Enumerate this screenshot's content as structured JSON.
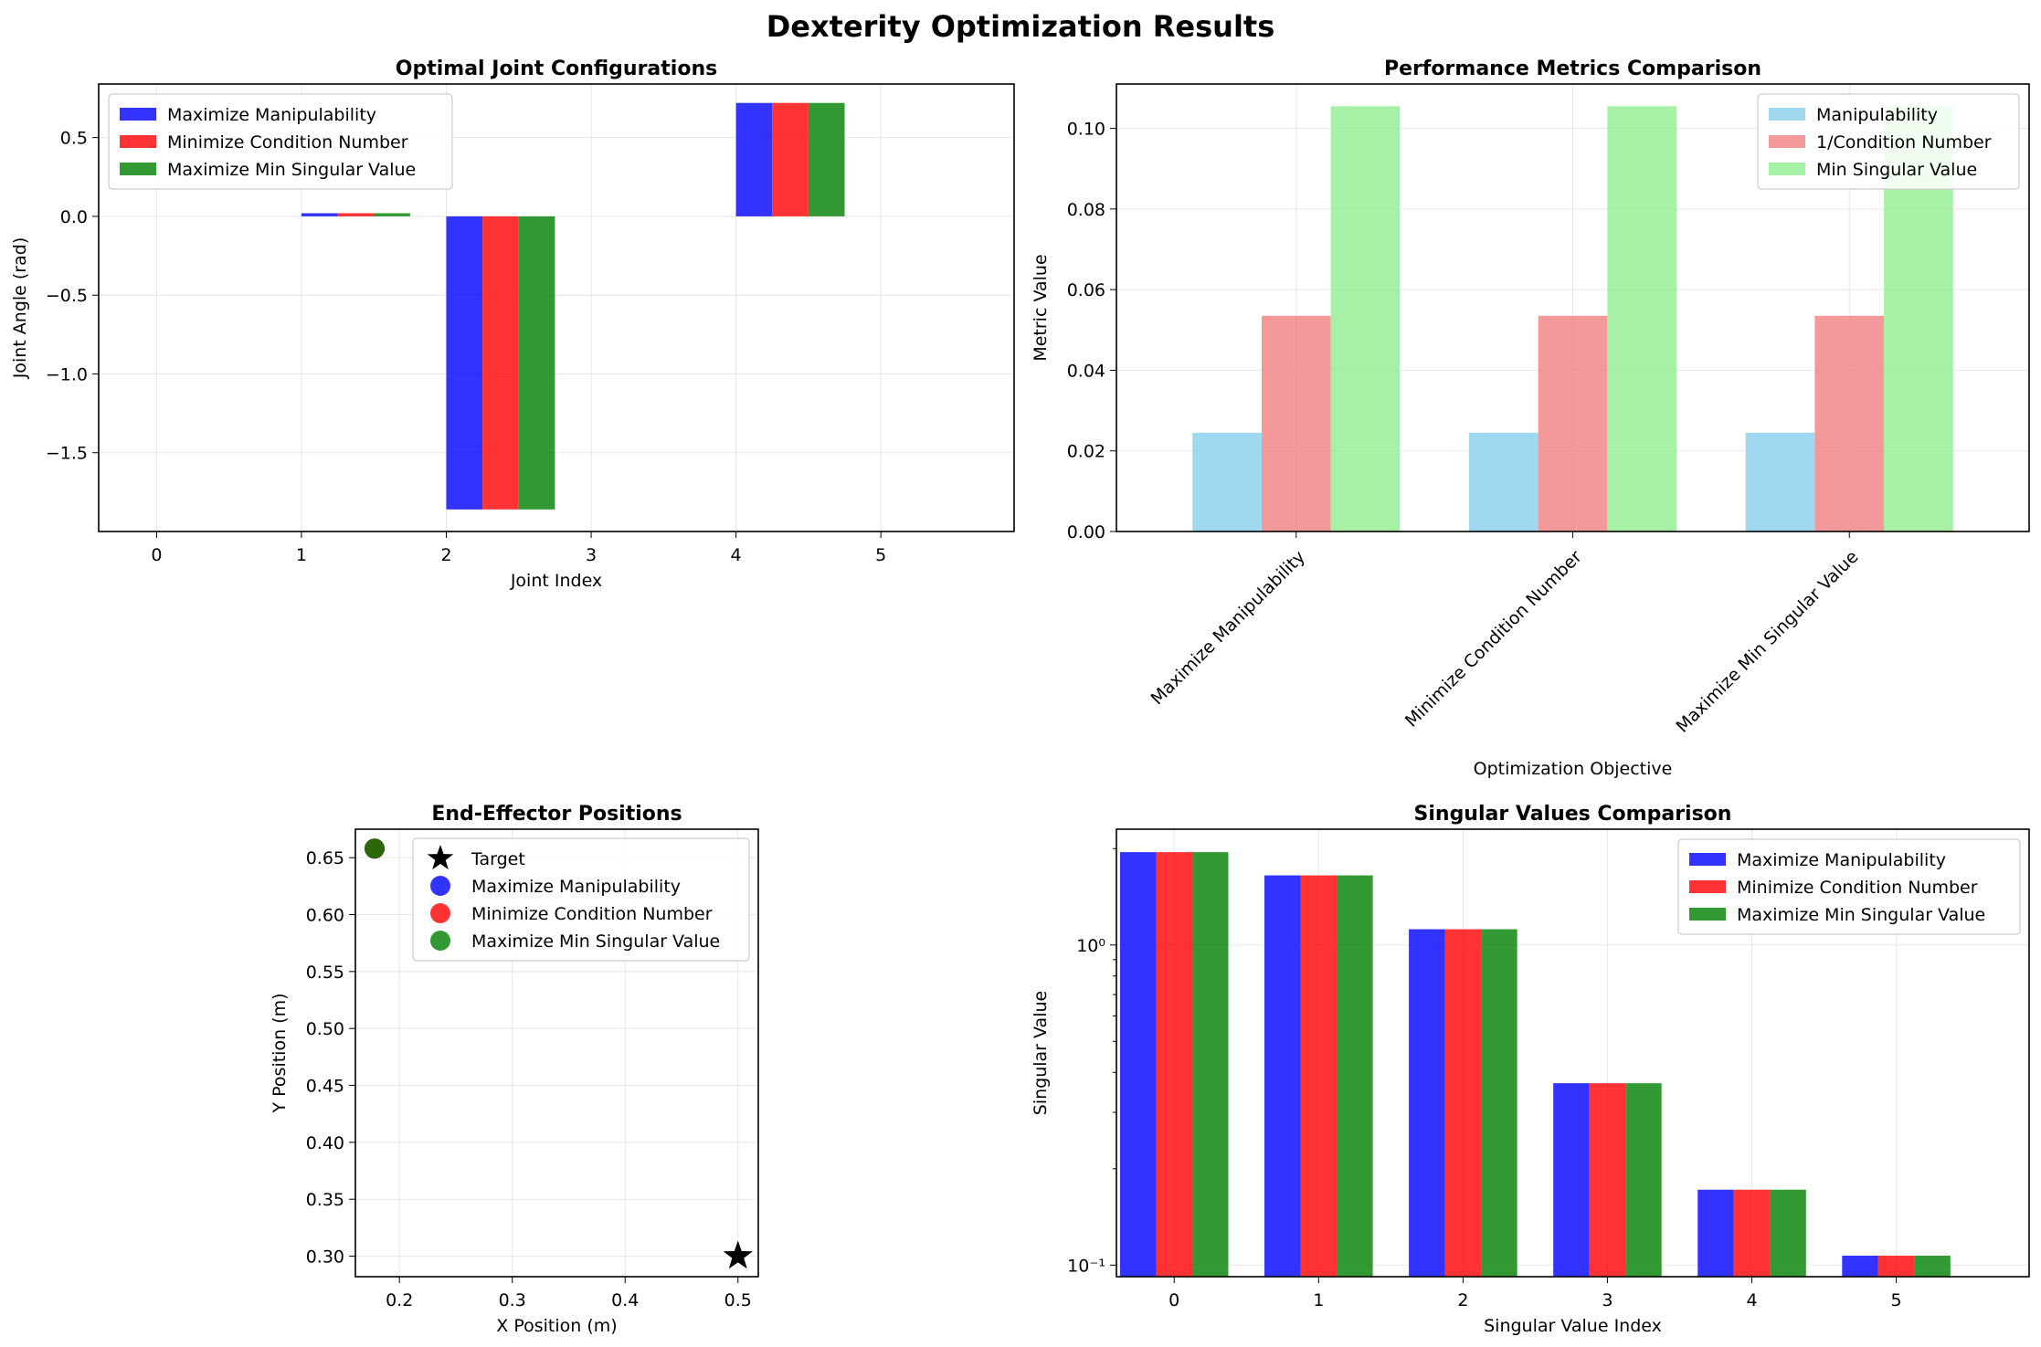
{
  "figure": {
    "suptitle": "Dexterity Optimization Results"
  },
  "colors": {
    "blue": "#0000ff",
    "red": "#ff0000",
    "green": "#008000",
    "skyblue": "#87ceeb",
    "lightcoral": "#f08080",
    "lightgreen": "#90ee90",
    "grid": "#b0b0b0"
  },
  "chart_data": [
    {
      "id": "joints",
      "type": "bar",
      "title": "Optimal Joint Configurations",
      "xlabel": "Joint Index",
      "ylabel": "Joint Angle (rad)",
      "x": [
        0,
        1,
        2,
        3,
        4,
        5
      ],
      "xticks": [
        "0",
        "1",
        "2",
        "3",
        "4",
        "5"
      ],
      "xlim": [
        -0.4,
        5.92
      ],
      "ylim": [
        -2.0,
        0.84
      ],
      "yticks": [
        0.5,
        0.0,
        -0.5,
        -1.0,
        -1.5
      ],
      "ytick_labels": [
        "0.5",
        "0.0",
        "−0.5",
        "−1.0",
        "−1.5"
      ],
      "bar_width": 0.25,
      "grid": true,
      "legend": "upper left",
      "series": [
        {
          "name": "Maximize Manipulability",
          "color": "blue",
          "values": [
            0,
            0.02,
            -1.86,
            0,
            0.72,
            0
          ]
        },
        {
          "name": "Minimize Condition Number",
          "color": "red",
          "values": [
            0,
            0.02,
            -1.86,
            0,
            0.72,
            0
          ]
        },
        {
          "name": "Maximize Min Singular Value",
          "color": "green",
          "values": [
            0,
            0.02,
            -1.86,
            0,
            0.72,
            0
          ]
        }
      ]
    },
    {
      "id": "metrics",
      "type": "bar",
      "title": "Performance Metrics Comparison",
      "xlabel": "Optimization Objective",
      "ylabel": "Metric Value",
      "categories": [
        "Maximize Manipulability",
        "Minimize Condition Number",
        "Maximize Min Singular Value"
      ],
      "xlim": [
        -0.65,
        2.65
      ],
      "ylim": [
        0,
        0.111
      ],
      "yticks": [
        0.0,
        0.02,
        0.04,
        0.06,
        0.08,
        0.1
      ],
      "ytick_labels": [
        "0.00",
        "0.02",
        "0.04",
        "0.06",
        "0.08",
        "0.10"
      ],
      "bar_width": 0.25,
      "grid": true,
      "legend": "upper right",
      "series": [
        {
          "name": "Manipulability",
          "color": "skyblue",
          "values": [
            0.0245,
            0.0245,
            0.0245
          ]
        },
        {
          "name": "1/Condition Number",
          "color": "lightcoral",
          "values": [
            0.0535,
            0.0535,
            0.0535
          ]
        },
        {
          "name": "Min Singular Value",
          "color": "lightgreen",
          "values": [
            0.1055,
            0.1055,
            0.1055
          ]
        }
      ]
    },
    {
      "id": "positions",
      "type": "scatter",
      "title": "End-Effector Positions",
      "xlabel": "X Position (m)",
      "ylabel": "Y Position (m)",
      "xlim": [
        0.161,
        0.518
      ],
      "ylim": [
        0.282,
        0.675
      ],
      "xticks": [
        0.2,
        0.3,
        0.4,
        0.5
      ],
      "xtick_labels": [
        "0.2",
        "0.3",
        "0.4",
        "0.5"
      ],
      "yticks": [
        0.3,
        0.35,
        0.4,
        0.45,
        0.5,
        0.55,
        0.6,
        0.65
      ],
      "ytick_labels": [
        "0.30",
        "0.35",
        "0.40",
        "0.45",
        "0.50",
        "0.55",
        "0.60",
        "0.65"
      ],
      "grid": true,
      "legend": "upper right",
      "series": [
        {
          "name": "Target",
          "marker": "star",
          "color": "#000000",
          "points": [
            [
              0.5,
              0.3
            ]
          ]
        },
        {
          "name": "Maximize Manipulability",
          "marker": "circle",
          "color": "blue",
          "points": [
            [
              0.178,
              0.658
            ]
          ]
        },
        {
          "name": "Minimize Condition Number",
          "marker": "circle",
          "color": "red",
          "points": [
            [
              0.178,
              0.658
            ]
          ]
        },
        {
          "name": "Maximize Min Singular Value",
          "marker": "circle",
          "color": "green",
          "points": [
            [
              0.178,
              0.658
            ]
          ]
        }
      ]
    },
    {
      "id": "singular",
      "type": "bar",
      "title": "Singular Values Comparison",
      "xlabel": "Singular Value Index",
      "ylabel": "Singular Value",
      "x": [
        0,
        1,
        2,
        3,
        4,
        5
      ],
      "xticks": [
        "0",
        "1",
        "2",
        "3",
        "4",
        "5"
      ],
      "xlim": [
        -0.4,
        5.92
      ],
      "ylog": true,
      "ylim": [
        0.092,
        2.3
      ],
      "yticks_major": [
        1.0,
        0.1
      ],
      "ytick_labels": [
        "10⁰",
        "10⁻¹"
      ],
      "bar_width": 0.25,
      "grid": true,
      "legend": "upper right",
      "series": [
        {
          "name": "Maximize Manipulability",
          "color": "blue",
          "values": [
            1.95,
            1.65,
            1.12,
            0.37,
            0.172,
            0.107
          ]
        },
        {
          "name": "Minimize Condition Number",
          "color": "red",
          "values": [
            1.95,
            1.65,
            1.12,
            0.37,
            0.172,
            0.107
          ]
        },
        {
          "name": "Maximize Min Singular Value",
          "color": "green",
          "values": [
            1.95,
            1.65,
            1.12,
            0.37,
            0.172,
            0.107
          ]
        }
      ]
    }
  ]
}
